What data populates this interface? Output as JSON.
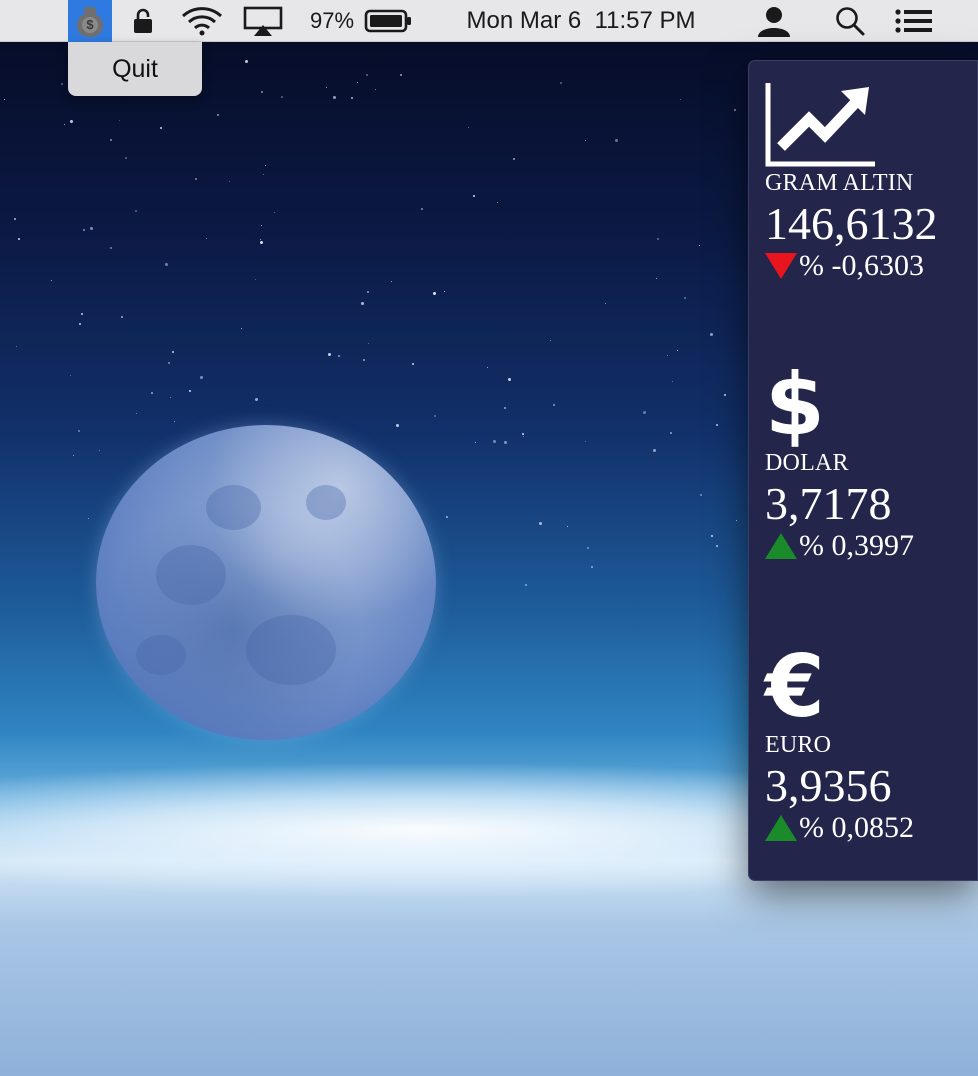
{
  "menubar": {
    "battery_percent": "97%",
    "datetime": "Mon Mar 6  11:57 PM",
    "app_icon": "moneybag-icon"
  },
  "app_menu": {
    "quit_label": "Quit"
  },
  "panel": {
    "cards": [
      {
        "icon": "trending-up-chart-icon",
        "name": "GRAM ALTIN",
        "value": "146,6132",
        "change": "% -0,6303",
        "direction": "down"
      },
      {
        "icon": "dollar-icon",
        "name": "DOLAR",
        "value": "3,7178",
        "change": "% 0,3997",
        "direction": "up"
      },
      {
        "icon": "euro-icon",
        "name": "EURO",
        "value": "3,9356",
        "change": "% 0,0852",
        "direction": "up"
      }
    ],
    "colors": {
      "background": "#23254a",
      "down": "#e8141e",
      "up": "#1b8a2a"
    }
  }
}
